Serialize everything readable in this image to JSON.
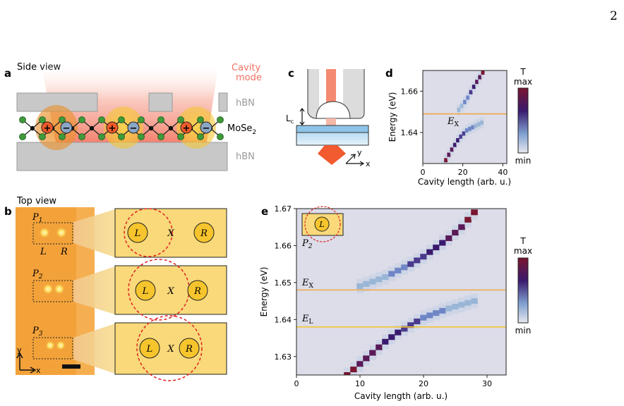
{
  "page_number": "2",
  "panels": {
    "a": {
      "label": "a",
      "side_view": "Side view",
      "cavity_mode_line1": "Cavity",
      "cavity_mode_line2": "mode",
      "hbn_top": "hBN",
      "hbn_bottom": "hBN",
      "material": "MoSe",
      "material_sub": "2",
      "charges": [
        "+",
        "−",
        "+",
        "−",
        "+",
        "−"
      ]
    },
    "b": {
      "label": "b",
      "top_view": "Top view",
      "p1": "P",
      "p1_sub": "1",
      "p2": "P",
      "p2_sub": "2",
      "p3": "P",
      "p3_sub": "3",
      "L": "L",
      "R": "R",
      "X": "X",
      "axis_y": "y",
      "axis_x": "x"
    },
    "c": {
      "label": "c",
      "lc": "L",
      "lc_sub": "c",
      "axis_y": "y",
      "axis_x": "x"
    },
    "d": {
      "label": "d",
      "ylabel": "Energy (eV)",
      "xlabel": "Cavity length (arb. u.)",
      "ex_label": "E",
      "ex_sub": "X",
      "colorbar_title": "T",
      "colorbar_max": "max",
      "colorbar_min": "min"
    },
    "e": {
      "label": "e",
      "ylabel": "Energy (eV)",
      "xlabel": "Cavity length (arb. u.)",
      "ex_label": "E",
      "ex_sub": "X",
      "el_label": "E",
      "el_sub": "L",
      "inset_L": "L",
      "inset_p": "P",
      "inset_p_sub": "2",
      "colorbar_title": "T",
      "colorbar_max": "max",
      "colorbar_min": "min"
    }
  },
  "colors": {
    "orange_line": "#f0a848",
    "yellow_line": "#f4c430",
    "heat_max": "#7a1630",
    "heat_mid": "#3a1a6e",
    "heat_low": "#9ab6d6",
    "heat_min": "#dcdde8",
    "cavity_red": "#f05a3a",
    "gold": "#f6c42c"
  },
  "chart_data": [
    {
      "panel": "d",
      "type": "heatmap",
      "xlabel": "Cavity length (arb. u.)",
      "ylabel": "Energy (eV)",
      "xlim": [
        0,
        42
      ],
      "ylim": [
        1.625,
        1.67
      ],
      "xticks": [
        0,
        20,
        40
      ],
      "yticks": [
        1.64,
        1.66
      ],
      "ex_energy": 1.649,
      "lower_branch": {
        "x": [
          10,
          14,
          18,
          22,
          26,
          30
        ],
        "energy": [
          1.624,
          1.631,
          1.637,
          1.641,
          1.643,
          1.645
        ]
      },
      "upper_branch": {
        "x": [
          18,
          22,
          26,
          30
        ],
        "energy": [
          1.651,
          1.656,
          1.663,
          1.669
        ]
      }
    },
    {
      "panel": "e",
      "type": "heatmap",
      "xlabel": "Cavity length (arb. u.)",
      "ylabel": "Energy (eV)",
      "xlim": [
        0,
        33
      ],
      "ylim": [
        1.625,
        1.67
      ],
      "xticks": [
        0,
        10,
        20,
        30
      ],
      "yticks": [
        1.63,
        1.64,
        1.65,
        1.66,
        1.67
      ],
      "ex_energy": 1.648,
      "el_energy": 1.638,
      "lower_branch": {
        "x": [
          8,
          10,
          12,
          14,
          16,
          18,
          20,
          24,
          28
        ],
        "energy": [
          1.625,
          1.628,
          1.631,
          1.634,
          1.6365,
          1.6385,
          1.6405,
          1.643,
          1.645
        ]
      },
      "upper_branch": {
        "x": [
          10,
          14,
          18,
          20,
          22,
          24,
          26,
          28
        ],
        "energy": [
          1.649,
          1.6515,
          1.655,
          1.657,
          1.6595,
          1.662,
          1.665,
          1.669
        ]
      }
    }
  ]
}
